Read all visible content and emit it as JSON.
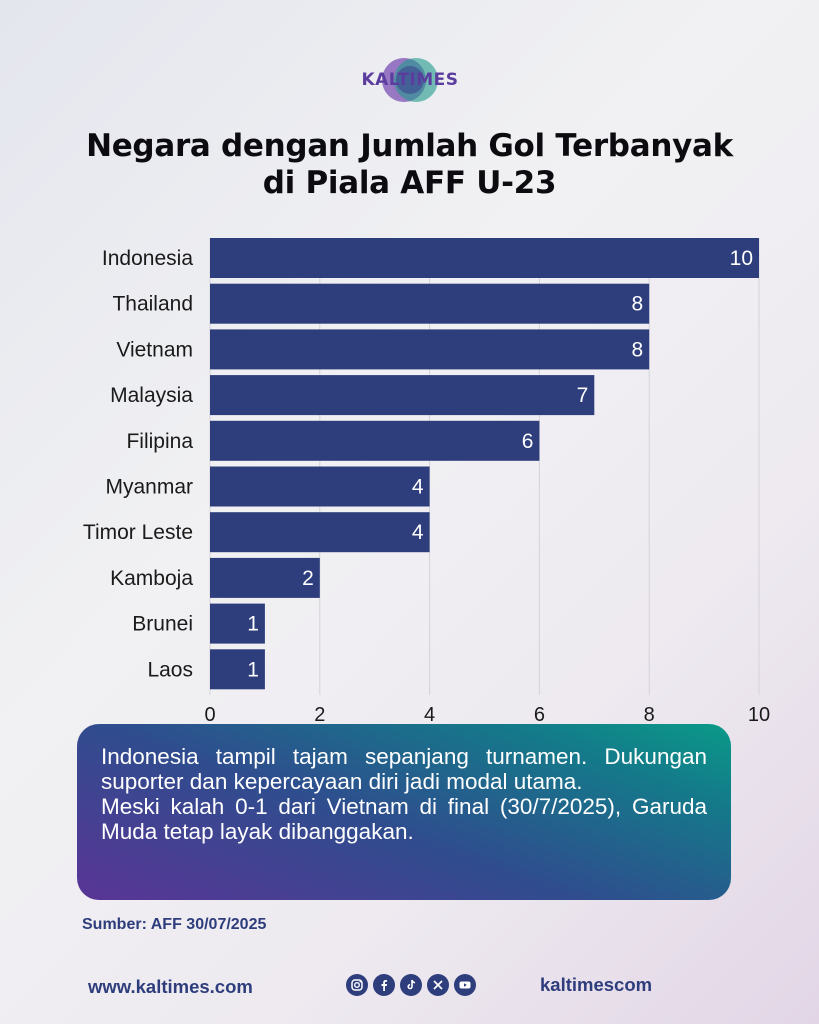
{
  "brand": {
    "name": "KALTIMES",
    "color": "#5b3d9e"
  },
  "title": {
    "line1": "Negara dengan Jumlah Gol Terbanyak",
    "line2": "di Piala AFF U-23"
  },
  "chart_data": {
    "type": "bar",
    "orientation": "horizontal",
    "categories": [
      "Indonesia",
      "Thailand",
      "Vietnam",
      "Malaysia",
      "Filipina",
      "Myanmar",
      "Timor Leste",
      "Kamboja",
      "Brunei",
      "Laos"
    ],
    "values": [
      10,
      8,
      8,
      7,
      6,
      4,
      4,
      2,
      1,
      1
    ],
    "xticks": [
      0,
      2,
      4,
      6,
      8,
      10
    ],
    "xlim": [
      0,
      10
    ],
    "grid": true,
    "bar_color": "#2e3d7c",
    "data_labels": true
  },
  "callout": {
    "paragraph1": "Indonesia tampil tajam sepanjang turnamen. Dukungan suporter dan kepercayaan diri jadi modal utama.",
    "paragraph2": "Meski kalah 0-1 dari Vietnam di final (30/7/2025), Garuda Muda tetap layak dibanggakan."
  },
  "source": "Sumber: AFF 30/07/2025",
  "footer": {
    "website": "www.kaltimes.com",
    "social_handle": "kaltimescom",
    "social_icons": [
      "instagram-icon",
      "facebook-icon",
      "tiktok-icon",
      "x-icon",
      "youtube-icon"
    ]
  },
  "colors": {
    "accent": "#2e3d7c",
    "title": "#0c0c10"
  }
}
